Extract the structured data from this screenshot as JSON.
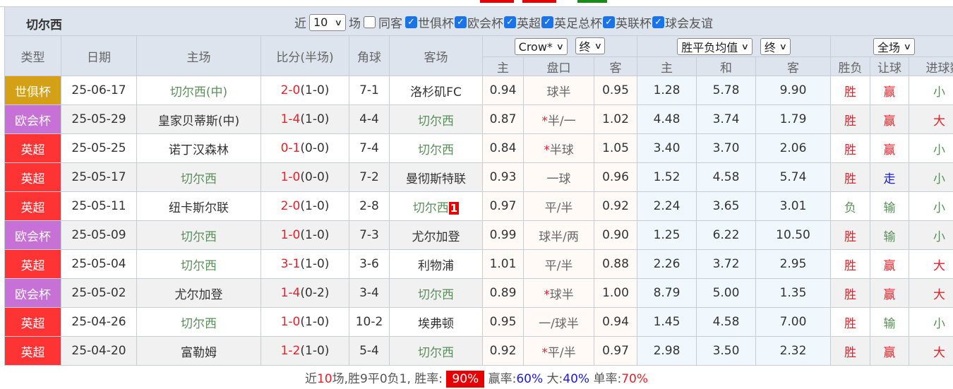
{
  "colors": {
    "accent_blue": "#1a73e8",
    "win_red": "#e8202a",
    "chelsea_green": "#5a8f5a",
    "type_club_wc": "#d4a015",
    "type_conf": "#c770d6",
    "type_epl": "#fe3333"
  },
  "toolbar": {
    "team": "切尔西",
    "recent_label": "近",
    "recent_value": "10",
    "games_label": "场",
    "same_label": "同客",
    "filters": [
      "世俱杯",
      "欧会杯",
      "英超",
      "英足总杯",
      "英联杯",
      "球会友谊"
    ]
  },
  "headers": {
    "type": "类型",
    "date": "日期",
    "home": "主场",
    "score": "比分(半场)",
    "corners": "角球",
    "away": "客场",
    "bookmaker": "Crow*",
    "bk_state": "终",
    "avg": "胜平负均值",
    "avg_state": "终",
    "scope": "全场",
    "sub": [
      "主",
      "盘口",
      "客",
      "主",
      "和",
      "客",
      "胜负",
      "让球",
      "进球数"
    ]
  },
  "rows": [
    {
      "type": "世俱杯",
      "tc": "#d4a015",
      "date": "25-06-17",
      "home": "切尔西(中)",
      "hg": true,
      "s": "2-0",
      "h": "(1-0)",
      "c": "7-1",
      "away": "洛杉矶FC",
      "ag": false,
      "o1": "0.94",
      "hc": "球半",
      "hs": false,
      "o2": "0.95",
      "w": "1.28",
      "d": "5.78",
      "l": "9.90",
      "r": "胜",
      "a": "赢",
      "g": "小"
    },
    {
      "type": "欧会杯",
      "tc": "#c770d6",
      "date": "25-05-29",
      "home": "皇家贝蒂斯(中)",
      "hg": false,
      "s": "1-4",
      "h": "(1-0)",
      "c": "4-4",
      "away": "切尔西",
      "ag": true,
      "o1": "0.87",
      "hc": "半/一",
      "hs": true,
      "o2": "1.02",
      "w": "4.48",
      "d": "3.74",
      "l": "1.79",
      "r": "胜",
      "a": "赢",
      "g": "大"
    },
    {
      "type": "英超",
      "tc": "#fe3333",
      "date": "25-05-25",
      "home": "诺丁汉森林",
      "hg": false,
      "s": "0-1",
      "h": "(0-0)",
      "c": "7-4",
      "away": "切尔西",
      "ag": true,
      "o1": "0.84",
      "hc": "半球",
      "hs": true,
      "o2": "1.05",
      "w": "3.40",
      "d": "3.70",
      "l": "2.06",
      "r": "胜",
      "a": "赢",
      "g": "小"
    },
    {
      "type": "英超",
      "tc": "#fe3333",
      "date": "25-05-17",
      "home": "切尔西",
      "hg": true,
      "s": "1-0",
      "h": "(0-0)",
      "c": "7-2",
      "away": "曼彻斯特联",
      "ag": false,
      "o1": "0.93",
      "hc": "一球",
      "hs": false,
      "o2": "0.96",
      "w": "1.52",
      "d": "4.58",
      "l": "5.74",
      "r": "胜",
      "a": "走",
      "g": "小"
    },
    {
      "type": "英超",
      "tc": "#fe3333",
      "date": "25-05-11",
      "home": "纽卡斯尔联",
      "hg": false,
      "s": "2-0",
      "h": "(1-0)",
      "c": "2-8",
      "away": "切尔西",
      "ag": true,
      "card": "1",
      "o1": "0.97",
      "hc": "平/半",
      "hs": false,
      "o2": "0.92",
      "w": "2.24",
      "d": "3.65",
      "l": "3.01",
      "r": "负",
      "a": "输",
      "g": "小"
    },
    {
      "type": "欧会杯",
      "tc": "#c770d6",
      "date": "25-05-09",
      "home": "切尔西",
      "hg": true,
      "s": "1-0",
      "h": "(1-0)",
      "c": "7-3",
      "away": "尤尔加登",
      "ag": false,
      "o1": "0.99",
      "hc": "球半/两",
      "hs": false,
      "o2": "0.90",
      "w": "1.25",
      "d": "6.22",
      "l": "10.50",
      "r": "胜",
      "a": "输",
      "g": "小"
    },
    {
      "type": "英超",
      "tc": "#fe3333",
      "date": "25-05-04",
      "home": "切尔西",
      "hg": true,
      "s": "3-1",
      "h": "(1-0)",
      "c": "3-6",
      "away": "利物浦",
      "ag": false,
      "o1": "1.01",
      "hc": "平/半",
      "hs": false,
      "o2": "0.88",
      "w": "2.26",
      "d": "3.72",
      "l": "2.95",
      "r": "胜",
      "a": "赢",
      "g": "大"
    },
    {
      "type": "欧会杯",
      "tc": "#c770d6",
      "date": "25-05-02",
      "home": "尤尔加登",
      "hg": false,
      "s": "1-4",
      "h": "(0-2)",
      "c": "3-4",
      "away": "切尔西",
      "ag": true,
      "o1": "0.89",
      "hc": "球半",
      "hs": true,
      "o2": "1.00",
      "w": "8.79",
      "d": "5.00",
      "l": "1.35",
      "r": "胜",
      "a": "赢",
      "g": "大"
    },
    {
      "type": "英超",
      "tc": "#fe3333",
      "date": "25-04-26",
      "home": "切尔西",
      "hg": true,
      "s": "1-0",
      "h": "(1-0)",
      "c": "10-2",
      "away": "埃弗顿",
      "ag": false,
      "o1": "0.95",
      "hc": "一/球半",
      "hs": false,
      "o2": "0.94",
      "w": "1.45",
      "d": "4.58",
      "l": "7.00",
      "r": "胜",
      "a": "输",
      "g": "小"
    },
    {
      "type": "英超",
      "tc": "#fe3333",
      "date": "25-04-20",
      "home": "富勒姆",
      "hg": false,
      "s": "1-2",
      "h": "(1-0)",
      "c": "5-4",
      "away": "切尔西",
      "ag": true,
      "o1": "0.92",
      "hc": "平/半",
      "hs": true,
      "o2": "0.97",
      "w": "2.98",
      "d": "3.50",
      "l": "2.32",
      "r": "胜",
      "a": "赢",
      "g": "大"
    }
  ],
  "summary": {
    "p1": "近",
    "n": "10",
    "p2": "场,胜9平0负1, 胜率:",
    "win_rate": "90%",
    "p3": "赢率:",
    "cover_rate": "60%",
    "p4": "大:",
    "over_rate": "40%",
    "p5": "单率:",
    "odd_rate": "70%"
  }
}
